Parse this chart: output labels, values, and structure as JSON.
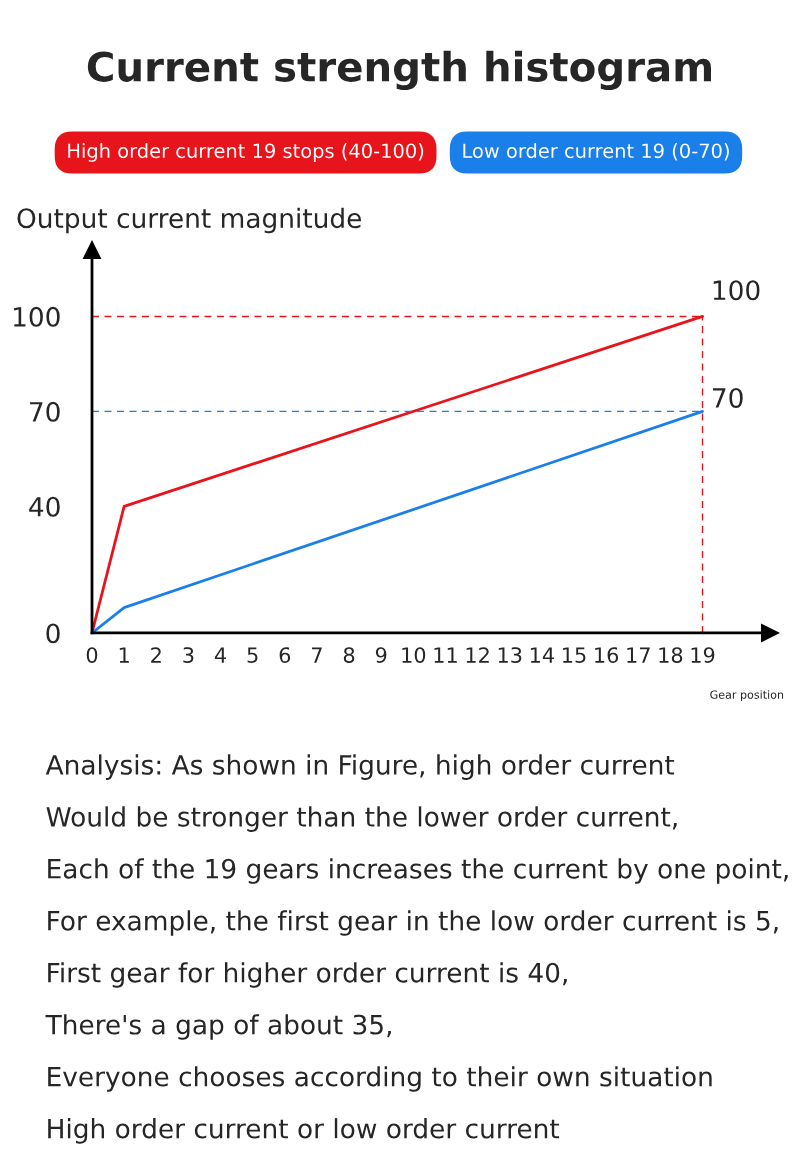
{
  "chart_data": {
    "type": "line",
    "title": "Current strength histogram",
    "ylabel": "Output current magnitude",
    "xlabel": "Gear position",
    "series": [
      {
        "name": "High order current 19 stops (40-100)",
        "color": "#e8141b",
        "x": [
          0,
          1,
          19
        ],
        "values": [
          0,
          40,
          100
        ]
      },
      {
        "name": "Low order current 19 (0-70)",
        "color": "#1a7fe8",
        "x": [
          0,
          1,
          19
        ],
        "values": [
          0,
          8,
          70
        ]
      }
    ],
    "xlim": [
      0,
      21.1
    ],
    "ylim": [
      0,
      121
    ],
    "xticks": [
      0,
      1,
      2,
      3,
      4,
      5,
      6,
      7,
      8,
      9,
      10,
      11,
      12,
      13,
      14,
      15,
      16,
      17,
      18,
      19
    ],
    "yticks": [
      0,
      40,
      70,
      100
    ],
    "ref_lines": [
      {
        "axis": "y",
        "value": 100,
        "color": "#e8141b",
        "line_style": "dashed"
      },
      {
        "axis": "y",
        "value": 70,
        "color": "#1a7fe8",
        "line_style": "dashed"
      },
      {
        "axis": "x",
        "value": 19,
        "color": "#e8141b",
        "line_style": "dashed"
      }
    ],
    "annotations": [
      {
        "text": "100",
        "x": 19,
        "y": 100
      },
      {
        "text": "70",
        "x": 19,
        "y": 70
      },
      "Analysis: As shown in Figure, high order current",
      "Would be stronger than the lower order current,",
      "Each of the 19 gears increases the current by one point,",
      "For example, the first gear in the low order current is 5,",
      "First gear for higher order current is 40,",
      "There's a gap of about 35,",
      "Everyone chooses according to their own situation",
      "High order current or low order current"
    ],
    "legend": "top",
    "grid": false,
    "marker": "none",
    "line_style": "solid"
  }
}
